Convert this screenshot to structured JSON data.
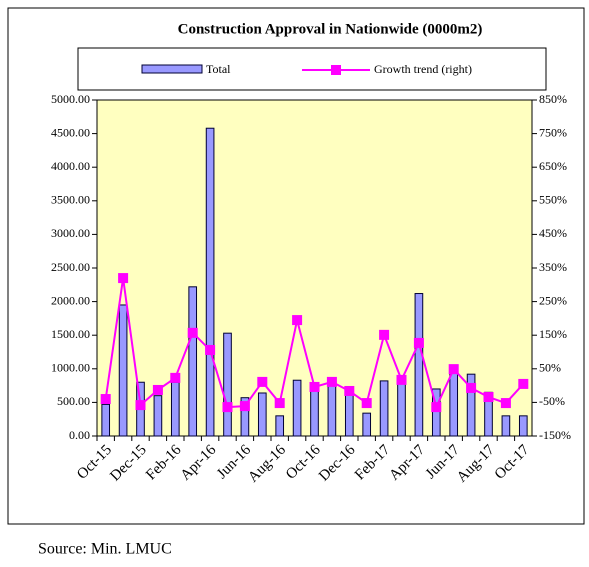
{
  "chart_data": {
    "type": "bar_line",
    "title": "Construction Approval in Nationwide (0000m2)",
    "source": "Source: Min. LMUC",
    "categories": [
      "Oct-15",
      null,
      "Dec-15",
      null,
      "Feb-16",
      null,
      "Apr-16",
      null,
      "Jun-16",
      null,
      "Aug-16",
      null,
      "Oct-16",
      null,
      "Dec-16",
      null,
      "Feb-17",
      null,
      "Apr-17",
      null,
      "Jun-17",
      null,
      "Aug-17",
      null,
      "Oct-17"
    ],
    "series": [
      {
        "name": "Total",
        "color": "#9999ff",
        "type": "bar",
        "values": [
          470,
          1950,
          800,
          600,
          800,
          2220,
          4580,
          1530,
          570,
          640,
          300,
          830,
          770,
          800,
          700,
          340,
          820,
          800,
          2120,
          700,
          1000,
          920,
          650,
          300,
          300
        ]
      },
      {
        "name": "Growth trend (right)",
        "color": "#ff00ff",
        "type": "line",
        "axis": "y2",
        "values": [
          -40,
          320,
          -58,
          -13,
          23,
          157,
          106,
          -64,
          -61,
          11,
          -52,
          195,
          -4,
          11,
          -16,
          -52,
          151,
          17,
          127,
          -64,
          49,
          -7,
          -34,
          -52,
          5
        ]
      }
    ],
    "ylim": [
      0,
      5000
    ],
    "yticks": [
      {
        "value": 0,
        "label": "0.00"
      },
      {
        "value": 500,
        "label": "500.00"
      },
      {
        "value": 1000,
        "label": "1000.00"
      },
      {
        "value": 1500,
        "label": "1500.00"
      },
      {
        "value": 2000,
        "label": "2000.00"
      },
      {
        "value": 2500,
        "label": "2500.00"
      },
      {
        "value": 3000,
        "label": "3000.00"
      },
      {
        "value": 3500,
        "label": "3500.00"
      },
      {
        "value": 4000,
        "label": "4000.00"
      },
      {
        "value": 4500,
        "label": "4500.00"
      },
      {
        "value": 5000,
        "label": "5000.00"
      }
    ],
    "y2lim": [
      -150,
      850
    ],
    "y2ticks": [
      {
        "value": -150,
        "label": "-150%"
      },
      {
        "value": -50,
        "label": "-50%"
      },
      {
        "value": 50,
        "label": "50%"
      },
      {
        "value": 150,
        "label": "150%"
      },
      {
        "value": 250,
        "label": "250%"
      },
      {
        "value": 350,
        "label": "350%"
      },
      {
        "value": 450,
        "label": "450%"
      },
      {
        "value": 550,
        "label": "550%"
      },
      {
        "value": 650,
        "label": "650%"
      },
      {
        "value": 750,
        "label": "750%"
      },
      {
        "value": 850,
        "label": "850%"
      }
    ],
    "plot_background": "#ffffc0"
  }
}
